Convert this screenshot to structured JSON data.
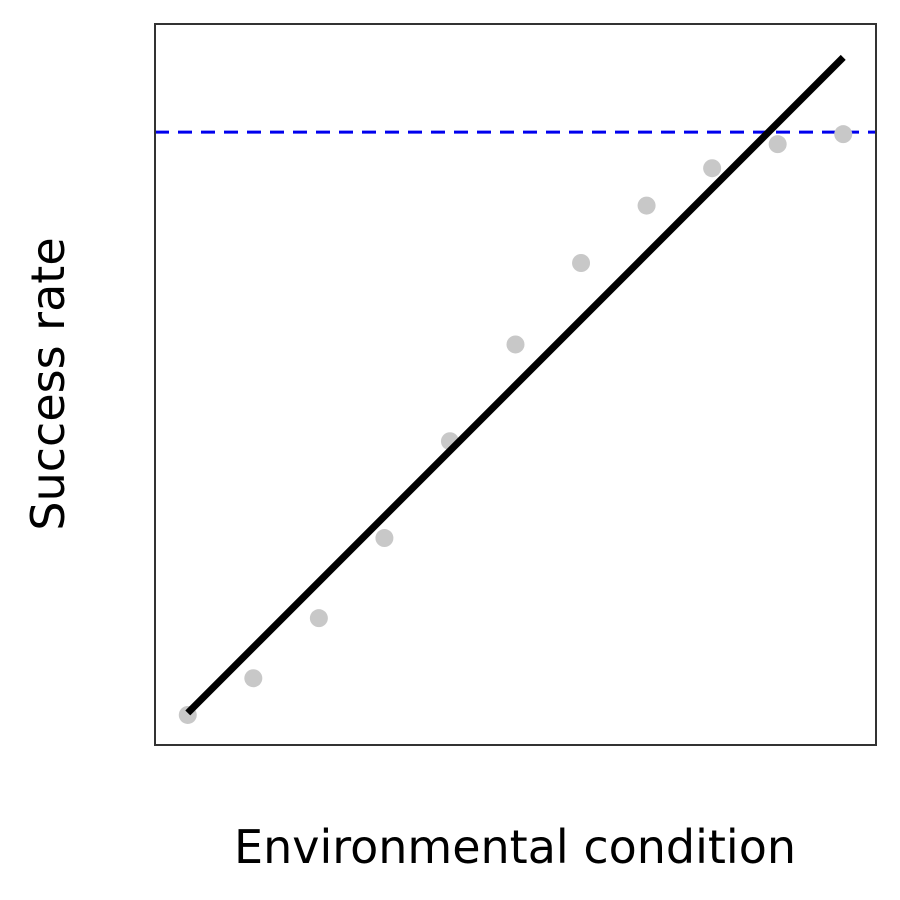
{
  "chart_data": {
    "type": "scatter",
    "title": "",
    "xlabel": "Environmental condition",
    "ylabel": "Success rate",
    "xlim": [
      0.5,
      11.5
    ],
    "ylim": [
      0,
      1.08
    ],
    "grid": false,
    "points": {
      "x": [
        1,
        2,
        3,
        4,
        5,
        6,
        7,
        8,
        9,
        10,
        11
      ],
      "y": [
        0.045,
        0.1,
        0.19,
        0.31,
        0.455,
        0.6,
        0.722,
        0.808,
        0.864,
        0.9,
        0.915
      ],
      "color": "#c8c8c8"
    },
    "fit_line": {
      "x": [
        1,
        11
      ],
      "y": [
        0.048,
        1.03
      ],
      "color": "#000000"
    },
    "reference_line": {
      "y": 0.918,
      "color": "#0000ee",
      "style": "dashed"
    }
  }
}
